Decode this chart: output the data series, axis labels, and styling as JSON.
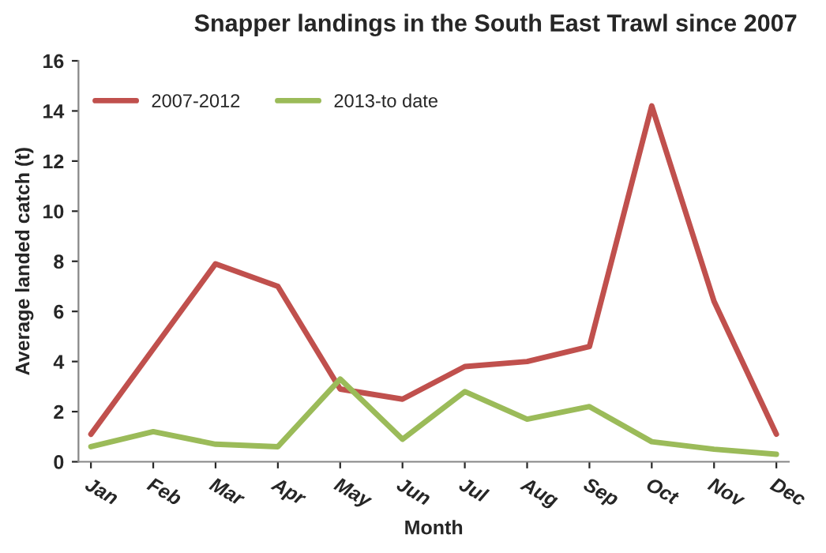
{
  "chart_data": {
    "type": "line",
    "title": "Snapper landings in the South East Trawl since 2007",
    "xlabel": "Month",
    "ylabel": "Average landed catch (t)",
    "categories": [
      "Jan",
      "Feb",
      "Mar",
      "Apr",
      "May",
      "Jun",
      "Jul",
      "Aug",
      "Sep",
      "Oct",
      "Nov",
      "Dec"
    ],
    "series": [
      {
        "name": "2007-2012",
        "color": "#c0504d",
        "values": [
          1.1,
          4.5,
          7.9,
          7.0,
          2.9,
          2.5,
          3.8,
          4.0,
          4.6,
          14.2,
          6.4,
          1.1
        ]
      },
      {
        "name": "2013-to date",
        "color": "#9bbb59",
        "values": [
          0.6,
          1.2,
          0.7,
          0.6,
          3.3,
          0.9,
          2.8,
          1.7,
          2.2,
          0.8,
          0.5,
          0.3
        ]
      }
    ],
    "ylim": [
      0,
      16
    ],
    "yticks": [
      0,
      2,
      4,
      6,
      8,
      10,
      12,
      14,
      16
    ],
    "grid": false,
    "legend": "top left",
    "marker": "none",
    "line_style": "solid"
  }
}
